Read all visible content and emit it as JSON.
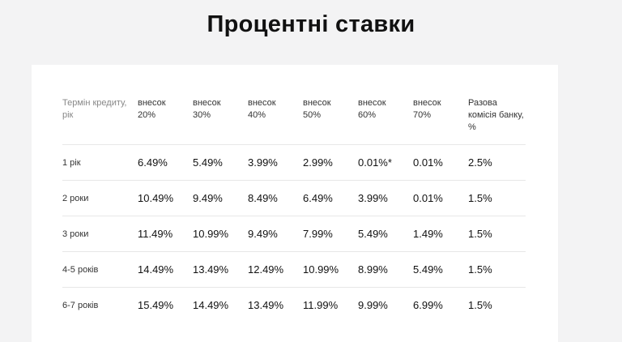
{
  "title": "Процентні ставки",
  "table": {
    "headers": [
      "Термін кредиту,\nрік",
      "внесок\n20%",
      "внесок\n30%",
      "внесок\n40%",
      "внесок\n50%",
      "внесок\n60%",
      "внесок\n70%",
      "Разова\nкомісія банку,\n%"
    ],
    "rows": [
      [
        "1 рік",
        "6.49%",
        "5.49%",
        "3.99%",
        "2.99%",
        "0.01%*",
        "0.01%",
        "2.5%"
      ],
      [
        "2 роки",
        "10.49%",
        "9.49%",
        "8.49%",
        "6.49%",
        "3.99%",
        "0.01%",
        "1.5%"
      ],
      [
        "3 роки",
        "11.49%",
        "10.99%",
        "9.49%",
        "7.99%",
        "5.49%",
        "1.49%",
        "1.5%"
      ],
      [
        "4-5 років",
        "14.49%",
        "13.49%",
        "12.49%",
        "10.99%",
        "8.99%",
        "5.49%",
        "1.5%"
      ],
      [
        "6-7 років",
        "15.49%",
        "14.49%",
        "13.49%",
        "11.99%",
        "9.99%",
        "6.99%",
        "1.5%"
      ]
    ]
  }
}
